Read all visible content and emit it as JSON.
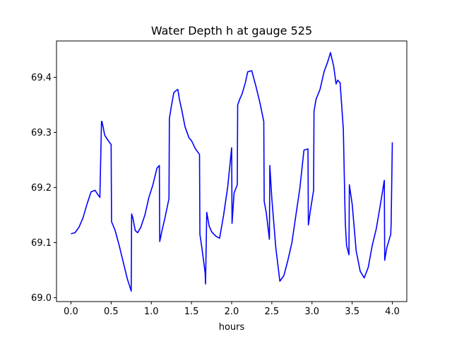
{
  "chart_data": {
    "type": "line",
    "title": "Water Depth h at gauge 525",
    "xlabel": "hours",
    "ylabel": "",
    "xlim": [
      -0.18,
      4.18
    ],
    "ylim": [
      68.993,
      69.466
    ],
    "xticks": [
      0.0,
      0.5,
      1.0,
      1.5,
      2.0,
      2.5,
      3.0,
      3.5,
      4.0
    ],
    "xtick_labels": [
      "0.0",
      "0.5",
      "1.0",
      "1.5",
      "2.0",
      "2.5",
      "3.0",
      "3.5",
      "4.0"
    ],
    "yticks": [
      69.0,
      69.1,
      69.2,
      69.3,
      69.4
    ],
    "ytick_labels": [
      "69.0",
      "69.1",
      "69.2",
      "69.3",
      "69.4"
    ],
    "grid": false,
    "line_color": "#0000ff",
    "series": [
      {
        "x": [
          0.0,
          0.05,
          0.1,
          0.15,
          0.2,
          0.25,
          0.3,
          0.33,
          0.36,
          0.38,
          0.385,
          0.4,
          0.42,
          0.45,
          0.5,
          0.505,
          0.55,
          0.6,
          0.65,
          0.7,
          0.75,
          0.755,
          0.77,
          0.8,
          0.83,
          0.87,
          0.92,
          0.97,
          1.02,
          1.07,
          1.1,
          1.105,
          1.13,
          1.17,
          1.22,
          1.225,
          1.25,
          1.28,
          1.3,
          1.33,
          1.35,
          1.38,
          1.42,
          1.47,
          1.5,
          1.55,
          1.6,
          1.605,
          1.63,
          1.67,
          1.675,
          1.69,
          1.72,
          1.75,
          1.8,
          1.85,
          1.9,
          1.95,
          2.0,
          2.005,
          2.03,
          2.07,
          2.075,
          2.1,
          2.13,
          2.17,
          2.2,
          2.25,
          2.3,
          2.35,
          2.4,
          2.405,
          2.43,
          2.47,
          2.475,
          2.5,
          2.55,
          2.6,
          2.65,
          2.7,
          2.75,
          2.8,
          2.85,
          2.9,
          2.95,
          2.955,
          2.98,
          3.02,
          3.025,
          3.05,
          3.1,
          3.15,
          3.2,
          3.23,
          3.27,
          3.3,
          3.32,
          3.35,
          3.39,
          3.41,
          3.415,
          3.43,
          3.46,
          3.465,
          3.5,
          3.55,
          3.6,
          3.65,
          3.7,
          3.75,
          3.8,
          3.85,
          3.9,
          3.905,
          3.93,
          3.98,
          3.985,
          4.0
        ],
        "y": [
          69.116,
          69.118,
          69.128,
          69.145,
          69.17,
          69.192,
          69.195,
          69.188,
          69.182,
          69.32,
          69.32,
          69.31,
          69.295,
          69.288,
          69.278,
          69.138,
          69.122,
          69.095,
          69.065,
          69.035,
          69.012,
          69.152,
          69.145,
          69.122,
          69.118,
          69.128,
          69.15,
          69.182,
          69.205,
          69.235,
          69.24,
          69.102,
          69.12,
          69.145,
          69.18,
          69.325,
          69.348,
          69.372,
          69.375,
          69.378,
          69.36,
          69.34,
          69.31,
          69.29,
          69.285,
          69.27,
          69.26,
          69.115,
          69.09,
          69.045,
          69.025,
          69.155,
          69.13,
          69.12,
          69.112,
          69.108,
          69.15,
          69.2,
          69.272,
          69.135,
          69.19,
          69.205,
          69.35,
          69.36,
          69.37,
          69.39,
          69.41,
          69.412,
          69.385,
          69.355,
          69.32,
          69.175,
          69.155,
          69.106,
          69.24,
          69.18,
          69.09,
          69.03,
          69.04,
          69.068,
          69.1,
          69.15,
          69.2,
          69.268,
          69.27,
          69.132,
          69.158,
          69.195,
          69.338,
          69.36,
          69.378,
          69.41,
          69.43,
          69.445,
          69.42,
          69.388,
          69.395,
          69.39,
          69.306,
          69.165,
          69.135,
          69.095,
          69.078,
          69.205,
          69.17,
          69.085,
          69.048,
          69.036,
          69.055,
          69.095,
          69.125,
          69.168,
          69.213,
          69.068,
          69.09,
          69.115,
          69.135,
          69.282
        ]
      }
    ]
  }
}
